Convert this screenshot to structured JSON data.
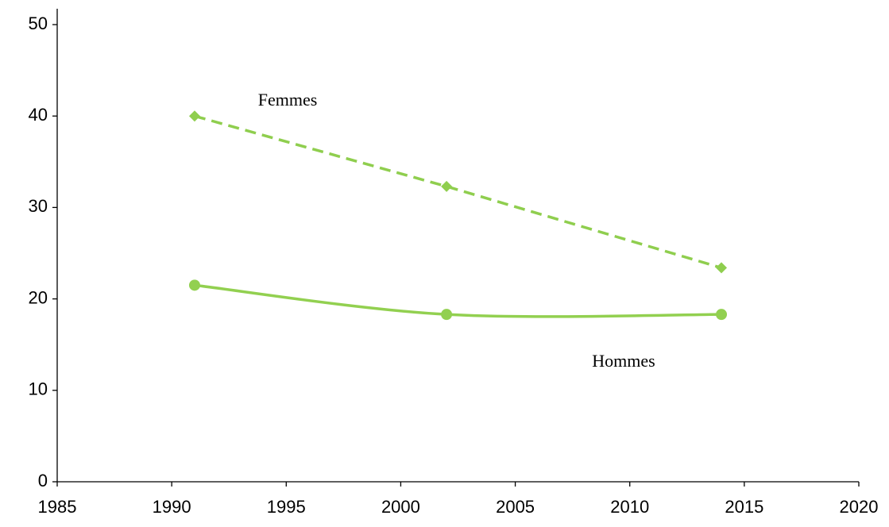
{
  "chart_data": {
    "type": "line",
    "x": [
      1991,
      2002,
      2014
    ],
    "series": [
      {
        "name": "Femmes",
        "color": "#8fce4e",
        "values": [
          40,
          32.3,
          23.4
        ],
        "dash": true,
        "smooth": false,
        "marker": "diamond"
      },
      {
        "name": "Hommes",
        "color": "#92d050",
        "values": [
          21.5,
          18.3,
          18.3
        ],
        "dash": false,
        "smooth": true,
        "marker": "circle"
      }
    ],
    "xlim": [
      1985,
      2020
    ],
    "xticks": [
      1985,
      1990,
      1995,
      2000,
      2005,
      2010,
      2015,
      2020
    ],
    "ylim": [
      0,
      50
    ],
    "yticks": [
      0,
      10,
      20,
      30,
      40,
      50
    ],
    "grid": false
  }
}
